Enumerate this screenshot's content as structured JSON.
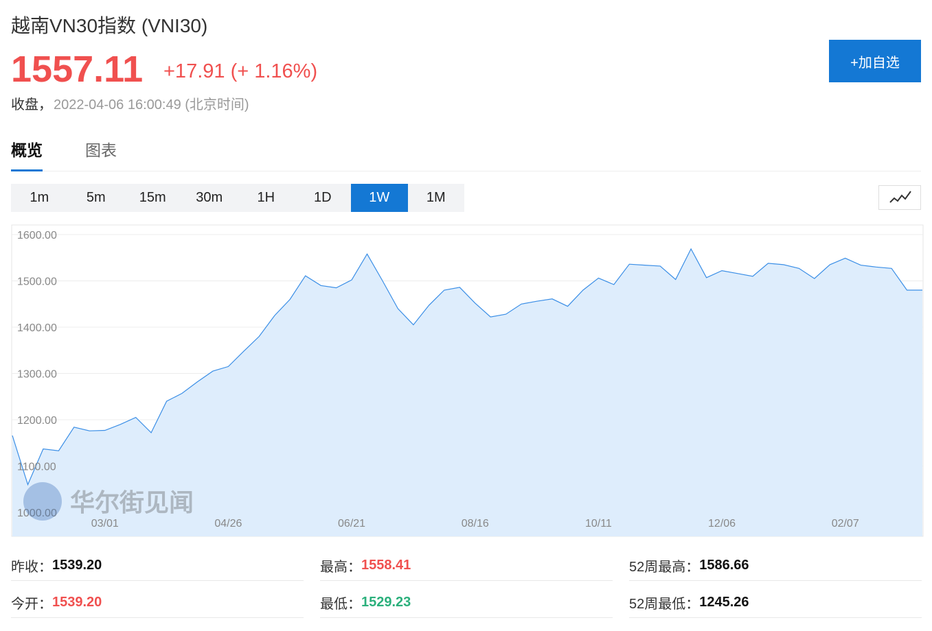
{
  "header": {
    "title": "越南VN30指数 (VNI30)",
    "price": "1557.11",
    "change": "+17.91 (+ 1.16%)",
    "status": "收盘，",
    "time": "2022-04-06 16:00:49 (北京时间)",
    "button": "+加自选"
  },
  "tabs": [
    "概览",
    "图表"
  ],
  "active_tab": 0,
  "intervals": [
    "1m",
    "5m",
    "15m",
    "30m",
    "1H",
    "1D",
    "1W",
    "1M"
  ],
  "active_interval": 6,
  "chart_data": {
    "type": "area",
    "watermark": "华尔街见闻",
    "categories": [
      null,
      null,
      null,
      null,
      null,
      null,
      "03/01",
      null,
      null,
      null,
      null,
      null,
      null,
      null,
      "04/26",
      null,
      null,
      null,
      null,
      null,
      null,
      null,
      "06/21",
      null,
      null,
      null,
      null,
      null,
      null,
      null,
      "08/16",
      null,
      null,
      null,
      null,
      null,
      null,
      null,
      "10/11",
      null,
      null,
      null,
      null,
      null,
      null,
      null,
      "12/06",
      null,
      null,
      null,
      null,
      null,
      null,
      null,
      "02/07",
      null,
      null,
      null,
      null,
      null
    ],
    "series": [
      {
        "name": "VNI30",
        "color": "#3a8ee6",
        "values": [
          1166,
          1060,
          1137,
          1133,
          1184,
          1176,
          1177,
          1190,
          1205,
          1172,
          1240,
          1257,
          1282,
          1305,
          1315,
          1348,
          1380,
          1425,
          1460,
          1511,
          1490,
          1485,
          1502,
          1558,
          1500,
          1440,
          1405,
          1447,
          1480,
          1486,
          1452,
          1422,
          1428,
          1450,
          1456,
          1461,
          1445,
          1480,
          1506,
          1492,
          1536,
          1534,
          1532,
          1503,
          1569,
          1507,
          1522,
          1516,
          1510,
          1538,
          1535,
          1527,
          1505,
          1535,
          1549,
          1534,
          1530,
          1527,
          1480,
          1480
        ]
      }
    ],
    "ylim": [
      1000,
      1600
    ],
    "yticks": [
      {
        "value": 1000,
        "label": "1000.00"
      },
      {
        "value": 1100,
        "label": "1100.00"
      },
      {
        "value": 1200,
        "label": "1200.00"
      },
      {
        "value": 1300,
        "label": "1300.00"
      },
      {
        "value": 1400,
        "label": "1400.00"
      },
      {
        "value": 1500,
        "label": "1500.00"
      },
      {
        "value": 1600,
        "label": "1600.00"
      }
    ],
    "grid": true
  },
  "stats": [
    [
      {
        "label": "昨收：",
        "value": "1539.20",
        "color": "#111111"
      },
      {
        "label": "最高：",
        "value": "1558.41",
        "color": "#f0504f"
      },
      {
        "label": "52周最高：",
        "value": "1586.66",
        "color": "#111111"
      }
    ],
    [
      {
        "label": "今开：",
        "value": "1539.20",
        "color": "#f0504f"
      },
      {
        "label": "最低：",
        "value": "1529.23",
        "color": "#2bb07c"
      },
      {
        "label": "52周最低：",
        "value": "1245.26",
        "color": "#111111"
      }
    ]
  ]
}
